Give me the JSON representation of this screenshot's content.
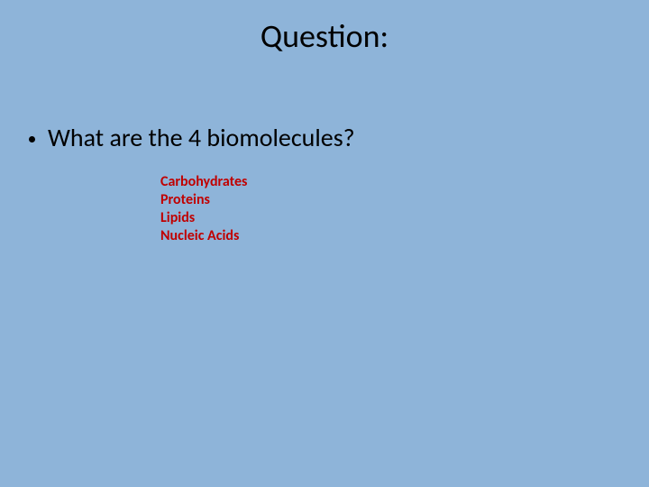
{
  "slide": {
    "title": "Question:",
    "question": "What are the 4 biomolecules?",
    "answers": [
      "Carbohydrates",
      "Proteins",
      "Lipids",
      "Nucleic Acids"
    ]
  },
  "style": {
    "background_color": "#8eb4d9",
    "title_color": "#000000",
    "title_fontsize": 36,
    "question_color": "#000000",
    "question_fontsize": 28,
    "answer_color": "#c00000",
    "answer_fontsize": 16,
    "answer_fontweight": 700,
    "bullet_color": "#000000"
  }
}
